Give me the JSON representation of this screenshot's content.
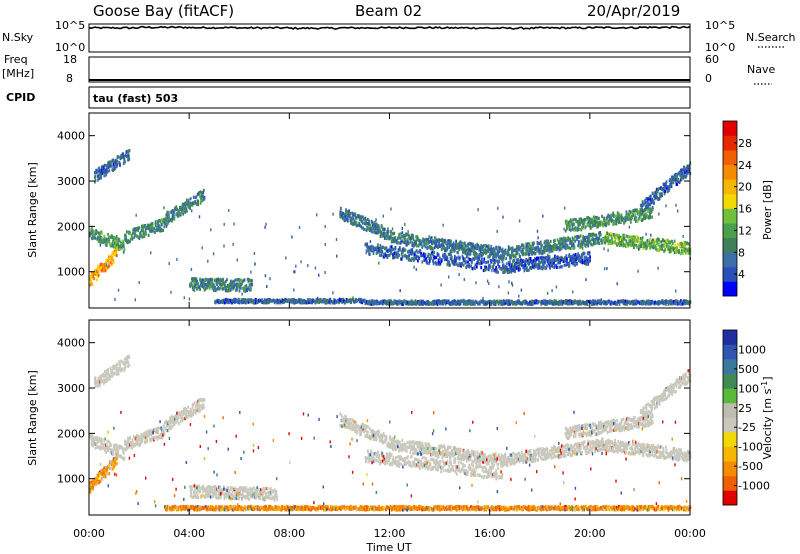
{
  "header": {
    "station": "Goose Bay (fitACF)",
    "beam": "Beam 02",
    "date": "20/Apr/2019"
  },
  "small_panels": {
    "nsky_label": "N.Sky",
    "nsky_ticks": [
      "10^5",
      "10^0"
    ],
    "nsearch_label": "N.Search",
    "nsearch_ticks": [
      "10^5",
      "10^0"
    ],
    "freq_label_top": "Freq",
    "freq_label_unit": "[MHz]",
    "freq_ticks": [
      "18",
      "8"
    ],
    "nave_label": "Nave",
    "nave_ticks": [
      "60",
      "0"
    ],
    "cpid_label": "CPID",
    "cpid_text": "tau (fast) 503"
  },
  "colors": {
    "power": [
      "#0000ff",
      "#2a50b8",
      "#3c6fa8",
      "#3f7f5a",
      "#4aa04a",
      "#70c040",
      "#f2d900",
      "#f7b600",
      "#f58c00",
      "#f06000",
      "#e52a00",
      "#e00000"
    ],
    "velocity": [
      "#1f2fa0",
      "#2f55b0",
      "#3a78a0",
      "#3f8a55",
      "#5ab83a",
      "#bcbcb0",
      "#c8c8bc",
      "#f2d900",
      "#f7b600",
      "#f58c00",
      "#f06000",
      "#e00000"
    ]
  },
  "chart_data": [
    {
      "type": "line",
      "title": "N.Sky / N.Search",
      "xlabel": "Time UT",
      "x_ticks": [
        "00:00",
        "04:00",
        "08:00",
        "12:00",
        "16:00",
        "20:00",
        "00:00"
      ],
      "left_ticks": [
        "10^5",
        "10^0"
      ],
      "right_ticks": [
        "10^5",
        "10^0"
      ],
      "description": "Noise level near the top of the log axis, essentially flat all day",
      "series": [
        {
          "name": "N.Sky",
          "values_fraction_of_axis": [
            0.86,
            0.88,
            0.87,
            0.86,
            0.85,
            0.86,
            0.87,
            0.86,
            0.85,
            0.86,
            0.87,
            0.88,
            0.86
          ]
        }
      ]
    },
    {
      "type": "line",
      "title": "Freq [MHz] / Nave",
      "left_ticks": [
        "18",
        "8"
      ],
      "right_ticks": [
        "60",
        "0"
      ],
      "series": [
        {
          "name": "Freq",
          "values": [
            8.8,
            8.8,
            8.8,
            8.8,
            8.8,
            8.8,
            8.8,
            8.8,
            8.8,
            8.8,
            8.8,
            8.8,
            8.8
          ]
        }
      ]
    },
    {
      "type": "heatmap",
      "title": "Power",
      "xlabel": "",
      "ylabel": "Slant Range [km]",
      "y_ticks": [
        "1000",
        "2000",
        "3000",
        "4000"
      ],
      "ylim": [
        200,
        4500
      ],
      "xlim_hours": [
        0,
        24
      ],
      "colorbar_label": "Power [dB]",
      "colorbar_ticks": [
        "4",
        "8",
        "12",
        "16",
        "20",
        "24",
        "28"
      ],
      "colorbar_range": [
        0,
        30
      ],
      "echo_bands": [
        {
          "hours": [
            0,
            1.4
          ],
          "range": [
            1850,
            1550
          ],
          "value": 10
        },
        {
          "hours": [
            1.4,
            3.0
          ],
          "range": [
            1750,
            2050
          ],
          "value": 9
        },
        {
          "hours": [
            3.0,
            4.6
          ],
          "range": [
            2150,
            2700
          ],
          "value": 8
        },
        {
          "hours": [
            0.2,
            1.6
          ],
          "range": [
            3100,
            3600
          ],
          "value": 6
        },
        {
          "hours": [
            0,
            1.1
          ],
          "range": [
            800,
            1400
          ],
          "value": 20
        },
        {
          "hours": [
            4.0,
            6.5
          ],
          "range": [
            720,
            700
          ],
          "value": 8
        },
        {
          "hours": [
            10.0,
            12.2
          ],
          "range": [
            2300,
            1750
          ],
          "value": 7
        },
        {
          "hours": [
            12.2,
            16.5
          ],
          "range": [
            1750,
            1400
          ],
          "value": 7
        },
        {
          "hours": [
            16.5,
            20.5
          ],
          "range": [
            1400,
            1750
          ],
          "value": 8
        },
        {
          "hours": [
            20.5,
            24.0
          ],
          "range": [
            1750,
            1500
          ],
          "value": 12
        },
        {
          "hours": [
            11.0,
            16.5
          ],
          "range": [
            1500,
            1100
          ],
          "value": 5
        },
        {
          "hours": [
            16.5,
            20.0
          ],
          "range": [
            1100,
            1300
          ],
          "value": 5
        },
        {
          "hours": [
            19.0,
            22.5
          ],
          "range": [
            2000,
            2300
          ],
          "value": 10
        },
        {
          "hours": [
            22.0,
            24.0
          ],
          "range": [
            2400,
            3300
          ],
          "value": 6
        },
        {
          "hours": [
            5.0,
            11.0
          ],
          "range": [
            350,
            350
          ],
          "value": 6
        },
        {
          "hours": [
            11.0,
            24.0
          ],
          "range": [
            320,
            320
          ],
          "value": 6
        }
      ]
    },
    {
      "type": "heatmap",
      "title": "Velocity",
      "xlabel": "Time UT",
      "ylabel": "Slant Range [km]",
      "y_ticks": [
        "1000",
        "2000",
        "3000",
        "4000"
      ],
      "ylim": [
        200,
        4500
      ],
      "xlim_hours": [
        0,
        24
      ],
      "colorbar_label": "Velocity [m s^-1]",
      "colorbar_label_main": "Velocity [m s",
      "colorbar_label_sup": "-1",
      "colorbar_label_end": "]",
      "colorbar_ticks": [
        "1000",
        "500",
        "100",
        "25",
        "-25",
        "-100",
        "-500",
        "-1000"
      ],
      "colorbar_range": [
        -1000,
        1000
      ],
      "echo_bands": [
        {
          "hours": [
            0,
            1.4
          ],
          "range": [
            1850,
            1550
          ],
          "value": 0
        },
        {
          "hours": [
            1.4,
            3.0
          ],
          "range": [
            1750,
            2050
          ],
          "value": 0
        },
        {
          "hours": [
            3.0,
            4.6
          ],
          "range": [
            2150,
            2700
          ],
          "value": 0
        },
        {
          "hours": [
            0.2,
            1.6
          ],
          "range": [
            3100,
            3600
          ],
          "value": 0
        },
        {
          "hours": [
            0,
            1.1
          ],
          "range": [
            800,
            1400
          ],
          "value": -150
        },
        {
          "hours": [
            4.0,
            7.5
          ],
          "range": [
            720,
            650
          ],
          "value": 0
        },
        {
          "hours": [
            10.0,
            12.2
          ],
          "range": [
            2300,
            1750
          ],
          "value": 0
        },
        {
          "hours": [
            12.2,
            16.5
          ],
          "range": [
            1750,
            1400
          ],
          "value": 0
        },
        {
          "hours": [
            16.5,
            20.5
          ],
          "range": [
            1400,
            1750
          ],
          "value": 0
        },
        {
          "hours": [
            20.5,
            24.0
          ],
          "range": [
            1750,
            1500
          ],
          "value": 0
        },
        {
          "hours": [
            11.0,
            16.5
          ],
          "range": [
            1500,
            1100
          ],
          "value": 0
        },
        {
          "hours": [
            19.0,
            22.5
          ],
          "range": [
            2000,
            2300
          ],
          "value": 0
        },
        {
          "hours": [
            22.0,
            24.0
          ],
          "range": [
            2400,
            3300
          ],
          "value": 0
        },
        {
          "hours": [
            3.0,
            24.0
          ],
          "range": [
            350,
            350
          ],
          "value": -200
        }
      ]
    }
  ]
}
